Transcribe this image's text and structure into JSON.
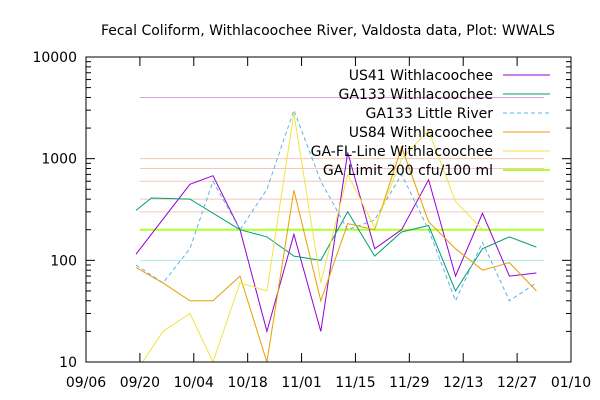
{
  "chart_data": {
    "type": "line",
    "title": "Fecal Coliform, Withlacoochee River, Valdosta data, Plot: WWALS",
    "xlabel": "",
    "ylabel": "",
    "yscale": "log",
    "ylim": [
      10,
      10000
    ],
    "xlim": [
      "2023-09-06",
      "2024-01-10"
    ],
    "x_ticks": [
      "09/06",
      "09/20",
      "10/04",
      "10/18",
      "11/01",
      "11/15",
      "11/29",
      "12/13",
      "12/27",
      "01/10"
    ],
    "y_ticks": [
      "10",
      "100",
      "1000",
      "10000"
    ],
    "legend_position": "top-right",
    "series": [
      {
        "name": "US41 Withlacoochee",
        "color": "#9400d3",
        "dash": "solid",
        "points": [
          [
            "2023-09-19",
            115
          ],
          [
            "2023-10-03",
            560
          ],
          [
            "2023-10-09",
            680
          ],
          [
            "2023-10-16",
            200
          ],
          [
            "2023-10-23",
            20
          ],
          [
            "2023-10-30",
            180
          ],
          [
            "2023-11-06",
            20
          ],
          [
            "2023-11-13",
            1150
          ],
          [
            "2023-11-20",
            130
          ],
          [
            "2023-11-27",
            200
          ],
          [
            "2023-12-04",
            620
          ],
          [
            "2023-12-11",
            70
          ],
          [
            "2023-12-18",
            290
          ],
          [
            "2023-12-25",
            70
          ],
          [
            "2024-01-01",
            75
          ]
        ]
      },
      {
        "name": "GA133 Withlacoochee",
        "color": "#009e73",
        "dash": "solid",
        "points": [
          [
            "2023-09-19",
            310
          ],
          [
            "2023-09-23",
            410
          ],
          [
            "2023-10-03",
            400
          ],
          [
            "2023-10-16",
            200
          ],
          [
            "2023-10-23",
            170
          ],
          [
            "2023-10-30",
            110
          ],
          [
            "2023-11-06",
            100
          ],
          [
            "2023-11-13",
            300
          ],
          [
            "2023-11-20",
            110
          ],
          [
            "2023-11-27",
            190
          ],
          [
            "2023-12-04",
            220
          ],
          [
            "2023-12-11",
            50
          ],
          [
            "2023-12-18",
            130
          ],
          [
            "2023-12-25",
            170
          ],
          [
            "2024-01-01",
            135
          ]
        ]
      },
      {
        "name": "GA133 Little River",
        "color": "#56b4e9",
        "dash": "dashed",
        "points": [
          [
            "2023-09-19",
            90
          ],
          [
            "2023-09-26",
            60
          ],
          [
            "2023-10-03",
            130
          ],
          [
            "2023-10-09",
            600
          ],
          [
            "2023-10-16",
            200
          ],
          [
            "2023-10-23",
            500
          ],
          [
            "2023-10-30",
            3000
          ],
          [
            "2023-11-06",
            600
          ],
          [
            "2023-11-13",
            200
          ],
          [
            "2023-11-20",
            250
          ],
          [
            "2023-11-27",
            700
          ],
          [
            "2023-12-04",
            200
          ],
          [
            "2023-12-11",
            40
          ],
          [
            "2023-12-18",
            150
          ],
          [
            "2023-12-25",
            40
          ],
          [
            "2024-01-01",
            60
          ]
        ]
      },
      {
        "name": "US84 Withlacoochee",
        "color": "#e69f00",
        "dash": "solid",
        "points": [
          [
            "2023-09-19",
            85
          ],
          [
            "2023-09-26",
            60
          ],
          [
            "2023-10-03",
            40
          ],
          [
            "2023-10-09",
            40
          ],
          [
            "2023-10-16",
            70
          ],
          [
            "2023-10-23",
            10
          ],
          [
            "2023-10-30",
            490
          ],
          [
            "2023-11-06",
            40
          ],
          [
            "2023-11-13",
            230
          ],
          [
            "2023-11-20",
            200
          ],
          [
            "2023-11-27",
            1300
          ],
          [
            "2023-12-04",
            240
          ],
          [
            "2023-12-11",
            130
          ],
          [
            "2023-12-18",
            80
          ],
          [
            "2023-12-25",
            95
          ],
          [
            "2024-01-01",
            50
          ]
        ]
      },
      {
        "name": "GA-FL-Line Withlacoochee",
        "color": "#f0e442",
        "dash": "solid",
        "points": [
          [
            "2023-09-19",
            8
          ],
          [
            "2023-09-26",
            20
          ],
          [
            "2023-10-03",
            30
          ],
          [
            "2023-10-09",
            10
          ],
          [
            "2023-10-16",
            60
          ],
          [
            "2023-10-23",
            50
          ],
          [
            "2023-10-30",
            2800
          ],
          [
            "2023-11-06",
            60
          ],
          [
            "2023-11-13",
            700
          ],
          [
            "2023-11-20",
            210
          ],
          [
            "2023-11-27",
            1000
          ],
          [
            "2023-12-04",
            1900
          ],
          [
            "2023-12-11",
            380
          ],
          [
            "2023-12-18",
            200
          ]
        ]
      }
    ],
    "reference_lines": [
      {
        "name": "GA Limit 200 cfu/100 ml",
        "value": 200,
        "color": "#adff2f"
      }
    ],
    "faint_reference_lines": [
      {
        "value": 4000,
        "color": "#dda0dd"
      },
      {
        "value": 1000,
        "color": "#f4c7b8"
      },
      {
        "value": 800,
        "color": "#f4c7b8"
      },
      {
        "value": 600,
        "color": "#f4c7b8"
      },
      {
        "value": 400,
        "color": "#f4c7b8"
      },
      {
        "value": 300,
        "color": "#f4c7b8"
      },
      {
        "value": 100,
        "color": "#b0e8e0"
      }
    ]
  }
}
